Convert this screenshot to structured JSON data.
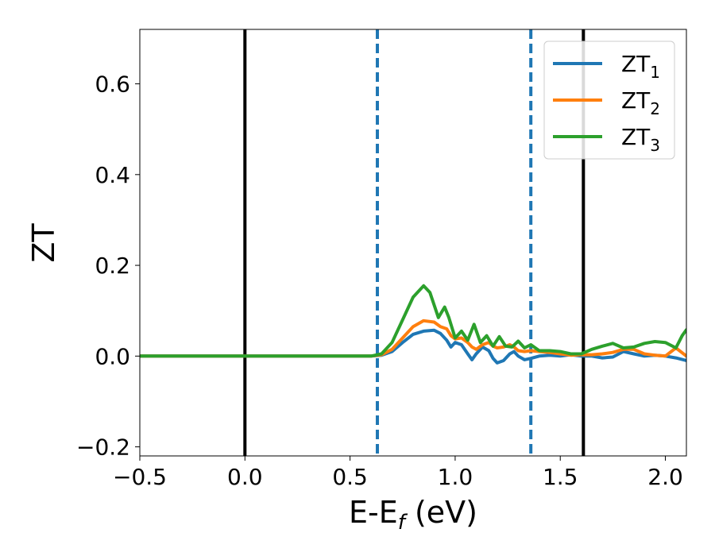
{
  "chart_data": {
    "type": "line",
    "xlabel": "E-E",
    "xlabel_sub": "f",
    "xlabel_unit": " (eV)",
    "ylabel": "ZT",
    "xlim": [
      -0.5,
      2.1
    ],
    "ylim": [
      -0.22,
      0.72
    ],
    "xticks": [
      -0.5,
      0.0,
      0.5,
      1.0,
      1.5,
      2.0
    ],
    "xtick_labels": [
      "−0.5",
      "0.0",
      "0.5",
      "1.0",
      "1.5",
      "2.0"
    ],
    "yticks": [
      -0.2,
      0.0,
      0.2,
      0.4,
      0.6
    ],
    "ytick_labels": [
      "−0.2",
      "0.0",
      "0.2",
      "0.4",
      "0.6"
    ],
    "grid": false,
    "legend_position": "top-right",
    "vlines": [
      {
        "x": 0.0,
        "style": "solid",
        "color": "#000000"
      },
      {
        "x": 0.63,
        "style": "dashed",
        "color": "#1f77b4"
      },
      {
        "x": 1.36,
        "style": "dashed",
        "color": "#1f77b4"
      },
      {
        "x": 1.61,
        "style": "solid",
        "color": "#000000"
      }
    ],
    "series": [
      {
        "name": "ZT",
        "name_sub": "1",
        "color": "#1f77b4",
        "x": [
          -0.5,
          0.0,
          0.6,
          0.65,
          0.7,
          0.75,
          0.8,
          0.85,
          0.9,
          0.93,
          0.96,
          0.98,
          1.0,
          1.03,
          1.06,
          1.08,
          1.1,
          1.13,
          1.16,
          1.18,
          1.2,
          1.23,
          1.26,
          1.28,
          1.3,
          1.33,
          1.36,
          1.4,
          1.45,
          1.5,
          1.55,
          1.6,
          1.65,
          1.7,
          1.75,
          1.8,
          1.85,
          1.9,
          1.95,
          2.0,
          2.05,
          2.1
        ],
        "y": [
          0.0,
          0.0,
          0.0,
          0.002,
          0.01,
          0.03,
          0.048,
          0.055,
          0.057,
          0.05,
          0.035,
          0.02,
          0.03,
          0.025,
          0.005,
          -0.008,
          0.005,
          0.02,
          0.012,
          -0.005,
          -0.015,
          -0.01,
          0.005,
          0.01,
          0.0,
          -0.008,
          -0.005,
          0.0,
          0.002,
          0.0,
          0.003,
          0.0,
          0.0,
          -0.004,
          -0.002,
          0.01,
          0.005,
          0.0,
          0.002,
          0.0,
          -0.004,
          -0.01
        ]
      },
      {
        "name": "ZT",
        "name_sub": "2",
        "color": "#ff7f0e",
        "x": [
          -0.5,
          0.0,
          0.6,
          0.65,
          0.7,
          0.75,
          0.8,
          0.85,
          0.9,
          0.93,
          0.96,
          0.98,
          1.0,
          1.03,
          1.06,
          1.08,
          1.1,
          1.13,
          1.16,
          1.18,
          1.2,
          1.23,
          1.26,
          1.28,
          1.3,
          1.33,
          1.36,
          1.4,
          1.45,
          1.5,
          1.55,
          1.6,
          1.65,
          1.7,
          1.75,
          1.8,
          1.85,
          1.9,
          1.95,
          2.0,
          2.05,
          2.1
        ],
        "y": [
          0.0,
          0.0,
          0.0,
          0.003,
          0.015,
          0.04,
          0.065,
          0.078,
          0.075,
          0.065,
          0.06,
          0.045,
          0.038,
          0.04,
          0.03,
          0.02,
          0.015,
          0.025,
          0.03,
          0.022,
          0.018,
          0.02,
          0.025,
          0.02,
          0.012,
          0.01,
          0.012,
          0.01,
          0.008,
          0.005,
          0.002,
          0.003,
          0.003,
          0.005,
          0.008,
          0.015,
          0.015,
          0.005,
          0.002,
          0.0,
          0.018,
          0.0
        ]
      },
      {
        "name": "ZT",
        "name_sub": "3",
        "color": "#2ca02c",
        "x": [
          -0.5,
          0.0,
          0.6,
          0.65,
          0.7,
          0.75,
          0.8,
          0.85,
          0.88,
          0.92,
          0.95,
          0.97,
          1.0,
          1.03,
          1.06,
          1.09,
          1.12,
          1.15,
          1.18,
          1.21,
          1.24,
          1.27,
          1.3,
          1.33,
          1.36,
          1.4,
          1.45,
          1.5,
          1.55,
          1.6,
          1.65,
          1.7,
          1.75,
          1.8,
          1.85,
          1.9,
          1.95,
          2.0,
          2.05,
          2.08,
          2.1
        ],
        "y": [
          0.0,
          0.0,
          0.0,
          0.005,
          0.03,
          0.08,
          0.13,
          0.155,
          0.14,
          0.085,
          0.108,
          0.085,
          0.04,
          0.055,
          0.035,
          0.07,
          0.03,
          0.045,
          0.022,
          0.043,
          0.022,
          0.02,
          0.033,
          0.018,
          0.025,
          0.012,
          0.012,
          0.01,
          0.005,
          0.005,
          0.015,
          0.022,
          0.028,
          0.018,
          0.02,
          0.028,
          0.032,
          0.03,
          0.018,
          0.045,
          0.058
        ]
      }
    ]
  }
}
